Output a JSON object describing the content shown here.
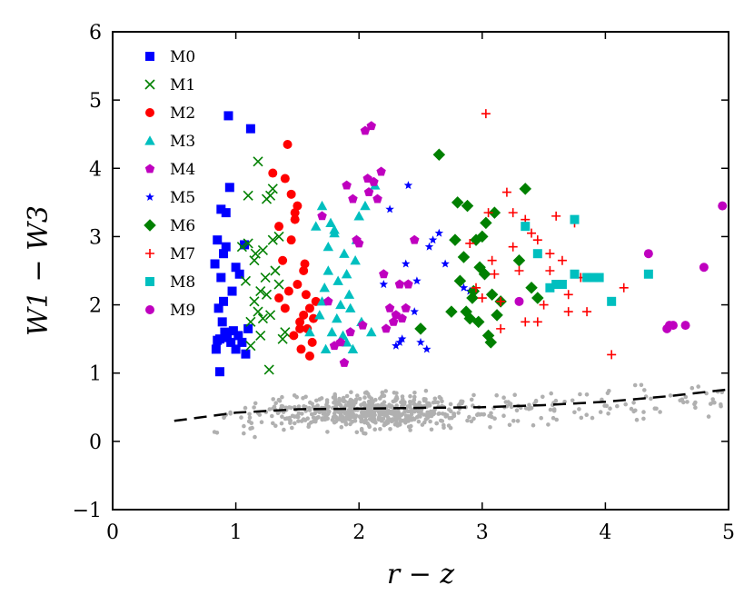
{
  "chart_data": {
    "type": "scatter",
    "title": "",
    "xlabel": "r − z",
    "ylabel": "W1 − W3",
    "xlim": [
      0,
      5
    ],
    "ylim": [
      -1,
      6
    ],
    "x_ticks": [
      "0",
      "1",
      "2",
      "3",
      "4",
      "5"
    ],
    "y_ticks": [
      "−1",
      "0",
      "1",
      "2",
      "3",
      "4",
      "5",
      "6"
    ],
    "grid": false,
    "legend_position": "top-left",
    "series": [
      {
        "name": "M0",
        "marker": "square",
        "color": "#0000ff",
        "x": [
          0.83,
          0.85,
          0.86,
          0.87,
          0.88,
          0.9,
          0.92,
          0.95,
          0.84,
          0.89,
          0.91,
          0.93,
          0.96,
          0.98,
          1.0,
          1.02,
          1.05,
          1.08,
          1.1,
          0.94,
          0.97,
          1.0,
          1.03,
          0.87,
          0.9,
          0.92,
          1.12,
          1.07,
          0.85,
          0.88
        ],
        "y": [
          2.6,
          2.95,
          1.95,
          1.5,
          2.4,
          2.05,
          3.35,
          3.72,
          1.35,
          1.75,
          1.6,
          1.52,
          1.45,
          1.62,
          1.35,
          1.55,
          1.45,
          1.28,
          1.65,
          4.77,
          2.2,
          2.55,
          2.45,
          1.02,
          2.75,
          2.85,
          4.58,
          2.88,
          1.48,
          3.4
        ]
      },
      {
        "name": "M1",
        "marker": "x",
        "color": "#008000",
        "x": [
          1.05,
          1.08,
          1.1,
          1.12,
          1.15,
          1.18,
          1.2,
          1.22,
          1.25,
          1.28,
          1.3,
          1.32,
          1.35,
          1.38,
          1.4,
          1.12,
          1.18,
          1.22,
          1.27,
          1.15,
          1.3,
          1.25,
          1.2,
          1.35,
          1.1,
          1.28,
          1.16,
          1.24
        ],
        "y": [
          2.85,
          2.35,
          2.9,
          1.75,
          2.05,
          4.1,
          2.2,
          2.8,
          3.55,
          3.6,
          2.95,
          2.5,
          3.0,
          1.5,
          1.6,
          1.4,
          1.9,
          1.8,
          1.05,
          2.65,
          3.7,
          2.15,
          1.55,
          2.3,
          3.6,
          1.85,
          2.75,
          2.4
        ]
      },
      {
        "name": "M2",
        "marker": "circle",
        "color": "#ff0000",
        "x": [
          1.3,
          1.35,
          1.4,
          1.42,
          1.45,
          1.48,
          1.5,
          1.52,
          1.55,
          1.58,
          1.6,
          1.62,
          1.65,
          1.38,
          1.43,
          1.47,
          1.53,
          1.57,
          1.6,
          1.63,
          1.5,
          1.55,
          1.45,
          1.35,
          1.4,
          1.56,
          1.48,
          1.52
        ],
        "y": [
          3.93,
          3.15,
          3.85,
          4.35,
          3.62,
          3.25,
          2.3,
          1.75,
          1.85,
          1.65,
          1.95,
          1.45,
          2.05,
          2.65,
          2.2,
          1.55,
          1.35,
          2.15,
          1.25,
          1.8,
          3.45,
          2.5,
          2.95,
          2.1,
          1.95,
          2.6,
          3.35,
          1.65
        ]
      },
      {
        "name": "M3",
        "marker": "triangle",
        "color": "#00bfbf",
        "x": [
          1.65,
          1.68,
          1.7,
          1.72,
          1.75,
          1.78,
          1.8,
          1.82,
          1.85,
          1.88,
          1.9,
          1.92,
          1.95,
          1.98,
          2.0,
          2.05,
          2.1,
          2.13,
          1.73,
          1.77,
          1.83,
          1.87,
          1.93,
          1.97,
          1.7,
          1.8,
          1.9,
          2.02,
          1.6,
          1.75
        ],
        "y": [
          3.15,
          1.85,
          3.45,
          2.25,
          2.5,
          1.6,
          3.05,
          1.8,
          2.0,
          2.75,
          2.45,
          2.15,
          1.35,
          2.95,
          3.3,
          3.45,
          1.6,
          3.75,
          1.35,
          3.2,
          2.35,
          1.55,
          1.95,
          2.65,
          2.05,
          3.1,
          1.45,
          1.75,
          1.6,
          2.85
        ]
      },
      {
        "name": "M4",
        "marker": "pentagon",
        "color": "#bf00bf",
        "x": [
          1.7,
          1.75,
          1.8,
          1.85,
          1.9,
          1.95,
          2.0,
          2.05,
          2.1,
          2.12,
          2.15,
          2.2,
          2.25,
          2.3,
          2.35,
          2.4,
          2.45,
          1.88,
          1.93,
          2.03,
          2.08,
          2.18,
          2.28,
          2.33,
          2.07,
          2.38,
          2.22,
          1.98
        ],
        "y": [
          3.3,
          2.05,
          1.4,
          1.45,
          3.75,
          3.55,
          2.9,
          4.55,
          4.62,
          3.8,
          3.55,
          2.45,
          1.95,
          1.85,
          1.8,
          2.3,
          2.95,
          1.15,
          1.6,
          1.7,
          3.65,
          3.95,
          1.75,
          2.3,
          3.85,
          1.95,
          1.65,
          2.95
        ]
      },
      {
        "name": "M5",
        "marker": "star",
        "color": "#0000ff",
        "x": [
          2.2,
          2.25,
          2.3,
          2.35,
          2.4,
          2.45,
          2.5,
          2.55,
          2.6,
          2.65,
          2.7,
          2.85,
          2.9,
          2.95,
          2.33,
          2.47,
          2.57,
          2.38
        ],
        "y": [
          2.3,
          3.4,
          1.4,
          1.5,
          3.75,
          1.9,
          1.45,
          1.35,
          2.95,
          3.05,
          2.6,
          2.25,
          2.2,
          2.95,
          1.45,
          2.35,
          2.85,
          2.6
        ]
      },
      {
        "name": "M6",
        "marker": "diamond",
        "color": "#008000",
        "x": [
          2.5,
          2.65,
          2.75,
          2.8,
          2.82,
          2.85,
          2.88,
          2.9,
          2.92,
          2.95,
          2.98,
          3.0,
          3.02,
          3.05,
          3.08,
          3.1,
          3.12,
          3.15,
          3.3,
          3.35,
          3.4,
          3.45,
          2.78,
          2.87,
          2.93,
          2.97,
          3.03,
          3.07
        ],
        "y": [
          1.65,
          4.2,
          1.9,
          3.5,
          2.35,
          2.7,
          3.45,
          1.8,
          2.1,
          2.95,
          2.55,
          3.0,
          2.45,
          1.55,
          2.15,
          3.35,
          1.85,
          2.05,
          2.65,
          3.7,
          2.25,
          2.1,
          2.95,
          1.9,
          2.2,
          1.75,
          3.2,
          1.45
        ]
      },
      {
        "name": "M7",
        "marker": "plus",
        "color": "#ff0000",
        "x": [
          2.9,
          2.95,
          3.0,
          3.03,
          3.05,
          3.08,
          3.1,
          3.15,
          3.2,
          3.25,
          3.3,
          3.35,
          3.4,
          3.45,
          3.5,
          3.55,
          3.6,
          3.65,
          3.7,
          3.75,
          4.05,
          4.15,
          3.85,
          3.35,
          3.45,
          3.55,
          3.15,
          3.25,
          3.7,
          3.8
        ],
        "y": [
          2.9,
          2.25,
          2.1,
          4.8,
          3.35,
          2.65,
          2.45,
          2.05,
          3.65,
          3.35,
          2.5,
          3.25,
          3.05,
          1.75,
          2.0,
          2.75,
          3.3,
          2.65,
          1.9,
          3.2,
          1.27,
          2.25,
          1.9,
          1.75,
          2.95,
          2.5,
          1.65,
          2.85,
          2.15,
          2.4
        ]
      },
      {
        "name": "M8",
        "marker": "square",
        "color": "#00bfbf",
        "x": [
          3.35,
          3.45,
          3.55,
          3.65,
          3.75,
          3.85,
          3.95,
          4.05,
          4.35,
          3.9,
          3.75,
          3.6
        ],
        "y": [
          3.15,
          2.75,
          2.25,
          2.3,
          3.25,
          2.4,
          2.4,
          2.05,
          2.45,
          2.4,
          2.45,
          2.3
        ]
      },
      {
        "name": "M9",
        "marker": "circle",
        "color": "#bf00bf",
        "x": [
          3.3,
          4.35,
          4.5,
          4.55,
          4.65,
          4.8,
          4.95,
          4.52
        ],
        "y": [
          2.05,
          2.75,
          1.65,
          1.7,
          1.7,
          2.55,
          3.45,
          1.7
        ]
      }
    ],
    "background_cloud": {
      "color": "#b0b0b0",
      "marker": "circle",
      "description_x_range": [
        0.8,
        4.95
      ],
      "count": 700
    },
    "trend_line": {
      "style": "dashed",
      "color": "#000000",
      "x": [
        0.5,
        1.0,
        1.5,
        2.0,
        2.5,
        3.0,
        3.5,
        4.0,
        4.5,
        5.0
      ],
      "y": [
        0.3,
        0.42,
        0.47,
        0.48,
        0.49,
        0.5,
        0.53,
        0.58,
        0.66,
        0.76
      ]
    }
  }
}
